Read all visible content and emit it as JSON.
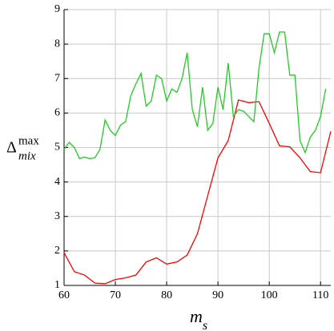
{
  "chart_data": {
    "type": "line",
    "xlabel": {
      "base": "m",
      "sub": "s"
    },
    "ylabel": {
      "base": "Δ",
      "sub": "mix",
      "sup": "max"
    },
    "xlim": [
      60,
      112
    ],
    "ylim": [
      1,
      9
    ],
    "xticks": [
      60,
      70,
      80,
      90,
      100,
      110
    ],
    "yticks": [
      1,
      2,
      3,
      4,
      5,
      6,
      7,
      8,
      9
    ],
    "grid": true,
    "series": [
      {
        "name": "red",
        "color": "#ff0000",
        "x": [
          60,
          62,
          64,
          66,
          68,
          70,
          72,
          74,
          76,
          78,
          80,
          82,
          84,
          86,
          88,
          90,
          92,
          94,
          96,
          98,
          100,
          102,
          104,
          106,
          108,
          110,
          112
        ],
        "values": [
          1.95,
          1.4,
          1.3,
          1.07,
          1.05,
          1.17,
          1.22,
          1.3,
          1.68,
          1.8,
          1.62,
          1.68,
          1.88,
          2.5,
          3.6,
          4.7,
          5.2,
          6.38,
          6.3,
          6.33,
          5.7,
          5.05,
          5.02,
          4.7,
          4.3,
          4.27,
          5.47
        ]
      },
      {
        "name": "green",
        "color": "#22cc22",
        "x": [
          60,
          61,
          62,
          63,
          64,
          65,
          66,
          67,
          68,
          69,
          70,
          71,
          72,
          73,
          74,
          75,
          76,
          77,
          78,
          79,
          80,
          81,
          82,
          83,
          84,
          85,
          86,
          87,
          88,
          89,
          90,
          91,
          92,
          93,
          94,
          95,
          96,
          97,
          98,
          99,
          100,
          101,
          102,
          103,
          104,
          105,
          106,
          107,
          108,
          109,
          110,
          111
        ],
        "values": [
          4.95,
          5.15,
          5.0,
          4.68,
          4.72,
          4.68,
          4.7,
          4.95,
          5.8,
          5.5,
          5.35,
          5.65,
          5.75,
          6.5,
          6.85,
          7.15,
          6.2,
          6.35,
          7.1,
          7.0,
          6.35,
          6.7,
          6.6,
          7.0,
          7.75,
          6.1,
          5.6,
          6.75,
          5.5,
          5.7,
          6.75,
          6.1,
          7.45,
          5.9,
          6.1,
          6.05,
          5.9,
          5.75,
          7.3,
          8.3,
          8.3,
          7.75,
          8.35,
          8.35,
          7.1,
          7.1,
          5.2,
          4.85,
          5.3,
          5.5,
          5.9,
          6.7
        ]
      }
    ]
  }
}
